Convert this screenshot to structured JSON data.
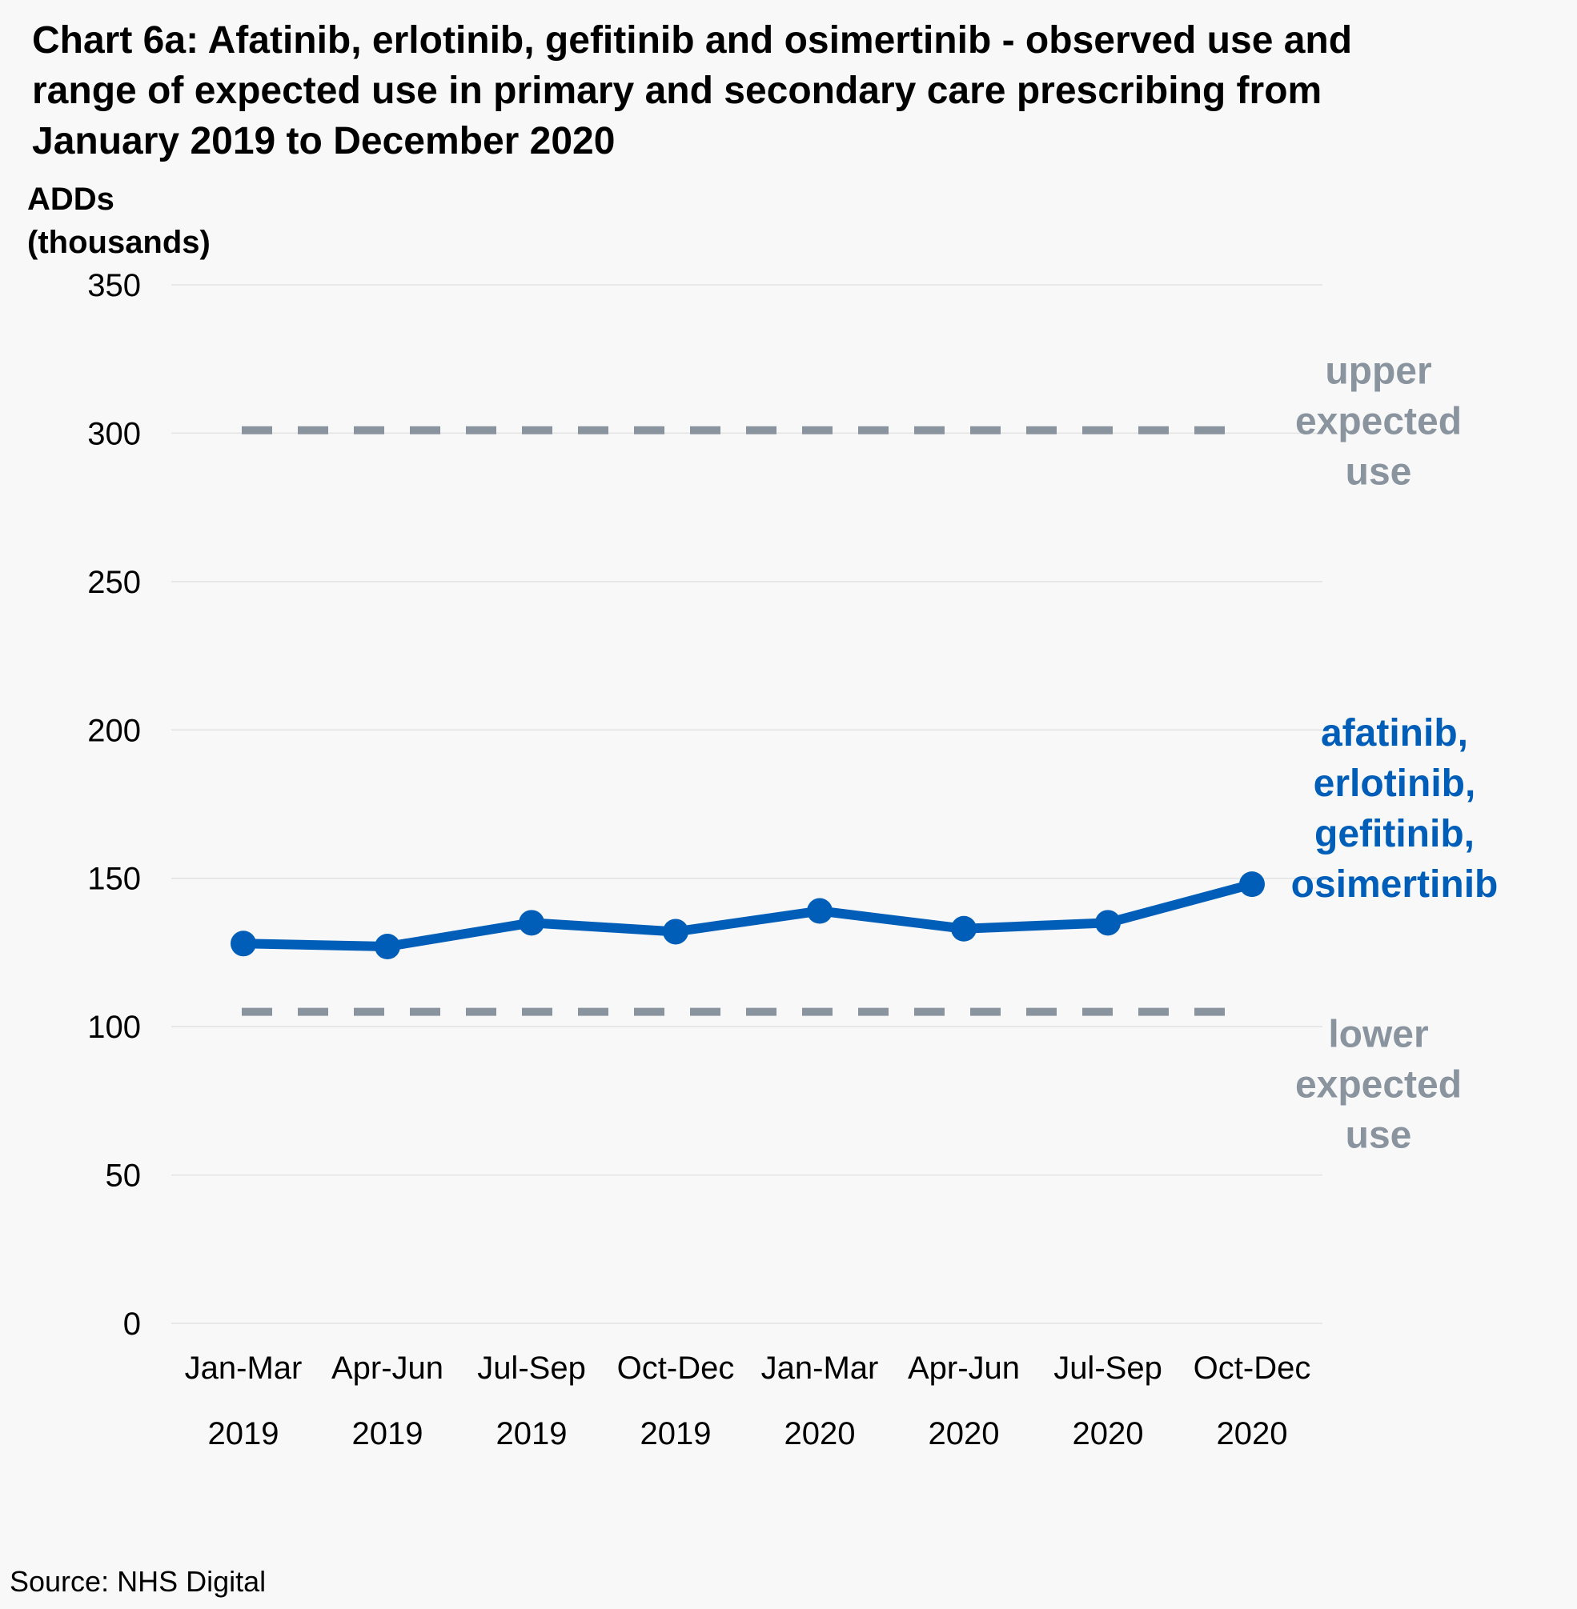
{
  "colors": {
    "background": "#f8f8f8",
    "series": "#005eb8",
    "reference": "#8a949e",
    "grid": "#e2e2e2"
  },
  "chart_data": {
    "type": "line",
    "title_lines": [
      "Chart 6a: Afatinib, erlotinib, gefitinib and osimertinib - observed use and",
      "range of expected use in primary and secondary care prescribing from",
      "January 2019 to December 2020"
    ],
    "ylabel_lines": [
      "ADDs",
      "(thousands)"
    ],
    "ylim": [
      0,
      350
    ],
    "yticks": [
      0,
      50,
      100,
      150,
      200,
      250,
      300,
      350
    ],
    "grid": true,
    "categories": [
      [
        "Jan-Mar",
        "2019"
      ],
      [
        "Apr-Jun",
        "2019"
      ],
      [
        "Jul-Sep",
        "2019"
      ],
      [
        "Oct-Dec",
        "2019"
      ],
      [
        "Jan-Mar",
        "2020"
      ],
      [
        "Apr-Jun",
        "2020"
      ],
      [
        "Jul-Sep",
        "2020"
      ],
      [
        "Oct-Dec",
        "2020"
      ]
    ],
    "series": [
      {
        "label_lines": [
          "afatinib,",
          "erlotinib,",
          "gefitinib,",
          "osimertinib"
        ],
        "values": [
          128,
          127,
          135,
          132,
          139,
          133,
          135,
          148
        ]
      }
    ],
    "reference_lines": [
      {
        "label_lines": [
          "upper",
          "expected",
          "use"
        ],
        "value": 301
      },
      {
        "label_lines": [
          "lower",
          "expected",
          "use"
        ],
        "value": 105
      }
    ]
  },
  "source": "Source: NHS Digital"
}
